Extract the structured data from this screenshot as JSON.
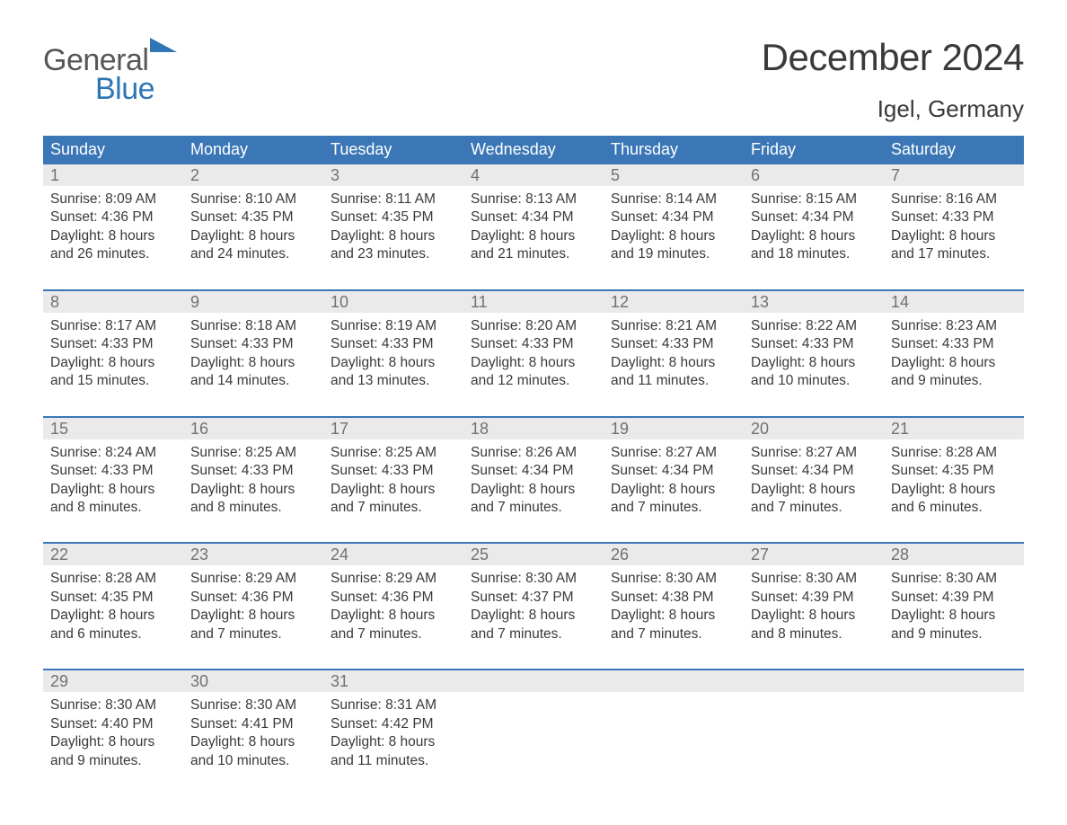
{
  "logo": {
    "word1": "General",
    "word2": "Blue",
    "triangle_color": "#2f76b5",
    "text_gray": "#565656"
  },
  "title": {
    "month": "December 2024",
    "location": "Igel, Germany"
  },
  "colors": {
    "header_bg": "#3b77b6",
    "header_text": "#ffffff",
    "daynum_bg": "#eaeaea",
    "daynum_text": "#717171",
    "body_text": "#3a3a3a",
    "week_rule": "#3b77b6",
    "page_bg": "#ffffff"
  },
  "day_headers": [
    "Sunday",
    "Monday",
    "Tuesday",
    "Wednesday",
    "Thursday",
    "Friday",
    "Saturday"
  ],
  "weeks": [
    [
      {
        "n": "1",
        "sr": "Sunrise: 8:09 AM",
        "ss": "Sunset: 4:36 PM",
        "dl": "Daylight: 8 hours and 26 minutes."
      },
      {
        "n": "2",
        "sr": "Sunrise: 8:10 AM",
        "ss": "Sunset: 4:35 PM",
        "dl": "Daylight: 8 hours and 24 minutes."
      },
      {
        "n": "3",
        "sr": "Sunrise: 8:11 AM",
        "ss": "Sunset: 4:35 PM",
        "dl": "Daylight: 8 hours and 23 minutes."
      },
      {
        "n": "4",
        "sr": "Sunrise: 8:13 AM",
        "ss": "Sunset: 4:34 PM",
        "dl": "Daylight: 8 hours and 21 minutes."
      },
      {
        "n": "5",
        "sr": "Sunrise: 8:14 AM",
        "ss": "Sunset: 4:34 PM",
        "dl": "Daylight: 8 hours and 19 minutes."
      },
      {
        "n": "6",
        "sr": "Sunrise: 8:15 AM",
        "ss": "Sunset: 4:34 PM",
        "dl": "Daylight: 8 hours and 18 minutes."
      },
      {
        "n": "7",
        "sr": "Sunrise: 8:16 AM",
        "ss": "Sunset: 4:33 PM",
        "dl": "Daylight: 8 hours and 17 minutes."
      }
    ],
    [
      {
        "n": "8",
        "sr": "Sunrise: 8:17 AM",
        "ss": "Sunset: 4:33 PM",
        "dl": "Daylight: 8 hours and 15 minutes."
      },
      {
        "n": "9",
        "sr": "Sunrise: 8:18 AM",
        "ss": "Sunset: 4:33 PM",
        "dl": "Daylight: 8 hours and 14 minutes."
      },
      {
        "n": "10",
        "sr": "Sunrise: 8:19 AM",
        "ss": "Sunset: 4:33 PM",
        "dl": "Daylight: 8 hours and 13 minutes."
      },
      {
        "n": "11",
        "sr": "Sunrise: 8:20 AM",
        "ss": "Sunset: 4:33 PM",
        "dl": "Daylight: 8 hours and 12 minutes."
      },
      {
        "n": "12",
        "sr": "Sunrise: 8:21 AM",
        "ss": "Sunset: 4:33 PM",
        "dl": "Daylight: 8 hours and 11 minutes."
      },
      {
        "n": "13",
        "sr": "Sunrise: 8:22 AM",
        "ss": "Sunset: 4:33 PM",
        "dl": "Daylight: 8 hours and 10 minutes."
      },
      {
        "n": "14",
        "sr": "Sunrise: 8:23 AM",
        "ss": "Sunset: 4:33 PM",
        "dl": "Daylight: 8 hours and 9 minutes."
      }
    ],
    [
      {
        "n": "15",
        "sr": "Sunrise: 8:24 AM",
        "ss": "Sunset: 4:33 PM",
        "dl": "Daylight: 8 hours and 8 minutes."
      },
      {
        "n": "16",
        "sr": "Sunrise: 8:25 AM",
        "ss": "Sunset: 4:33 PM",
        "dl": "Daylight: 8 hours and 8 minutes."
      },
      {
        "n": "17",
        "sr": "Sunrise: 8:25 AM",
        "ss": "Sunset: 4:33 PM",
        "dl": "Daylight: 8 hours and 7 minutes."
      },
      {
        "n": "18",
        "sr": "Sunrise: 8:26 AM",
        "ss": "Sunset: 4:34 PM",
        "dl": "Daylight: 8 hours and 7 minutes."
      },
      {
        "n": "19",
        "sr": "Sunrise: 8:27 AM",
        "ss": "Sunset: 4:34 PM",
        "dl": "Daylight: 8 hours and 7 minutes."
      },
      {
        "n": "20",
        "sr": "Sunrise: 8:27 AM",
        "ss": "Sunset: 4:34 PM",
        "dl": "Daylight: 8 hours and 7 minutes."
      },
      {
        "n": "21",
        "sr": "Sunrise: 8:28 AM",
        "ss": "Sunset: 4:35 PM",
        "dl": "Daylight: 8 hours and 6 minutes."
      }
    ],
    [
      {
        "n": "22",
        "sr": "Sunrise: 8:28 AM",
        "ss": "Sunset: 4:35 PM",
        "dl": "Daylight: 8 hours and 6 minutes."
      },
      {
        "n": "23",
        "sr": "Sunrise: 8:29 AM",
        "ss": "Sunset: 4:36 PM",
        "dl": "Daylight: 8 hours and 7 minutes."
      },
      {
        "n": "24",
        "sr": "Sunrise: 8:29 AM",
        "ss": "Sunset: 4:36 PM",
        "dl": "Daylight: 8 hours and 7 minutes."
      },
      {
        "n": "25",
        "sr": "Sunrise: 8:30 AM",
        "ss": "Sunset: 4:37 PM",
        "dl": "Daylight: 8 hours and 7 minutes."
      },
      {
        "n": "26",
        "sr": "Sunrise: 8:30 AM",
        "ss": "Sunset: 4:38 PM",
        "dl": "Daylight: 8 hours and 7 minutes."
      },
      {
        "n": "27",
        "sr": "Sunrise: 8:30 AM",
        "ss": "Sunset: 4:39 PM",
        "dl": "Daylight: 8 hours and 8 minutes."
      },
      {
        "n": "28",
        "sr": "Sunrise: 8:30 AM",
        "ss": "Sunset: 4:39 PM",
        "dl": "Daylight: 8 hours and 9 minutes."
      }
    ],
    [
      {
        "n": "29",
        "sr": "Sunrise: 8:30 AM",
        "ss": "Sunset: 4:40 PM",
        "dl": "Daylight: 8 hours and 9 minutes."
      },
      {
        "n": "30",
        "sr": "Sunrise: 8:30 AM",
        "ss": "Sunset: 4:41 PM",
        "dl": "Daylight: 8 hours and 10 minutes."
      },
      {
        "n": "31",
        "sr": "Sunrise: 8:31 AM",
        "ss": "Sunset: 4:42 PM",
        "dl": "Daylight: 8 hours and 11 minutes."
      },
      null,
      null,
      null,
      null
    ]
  ]
}
